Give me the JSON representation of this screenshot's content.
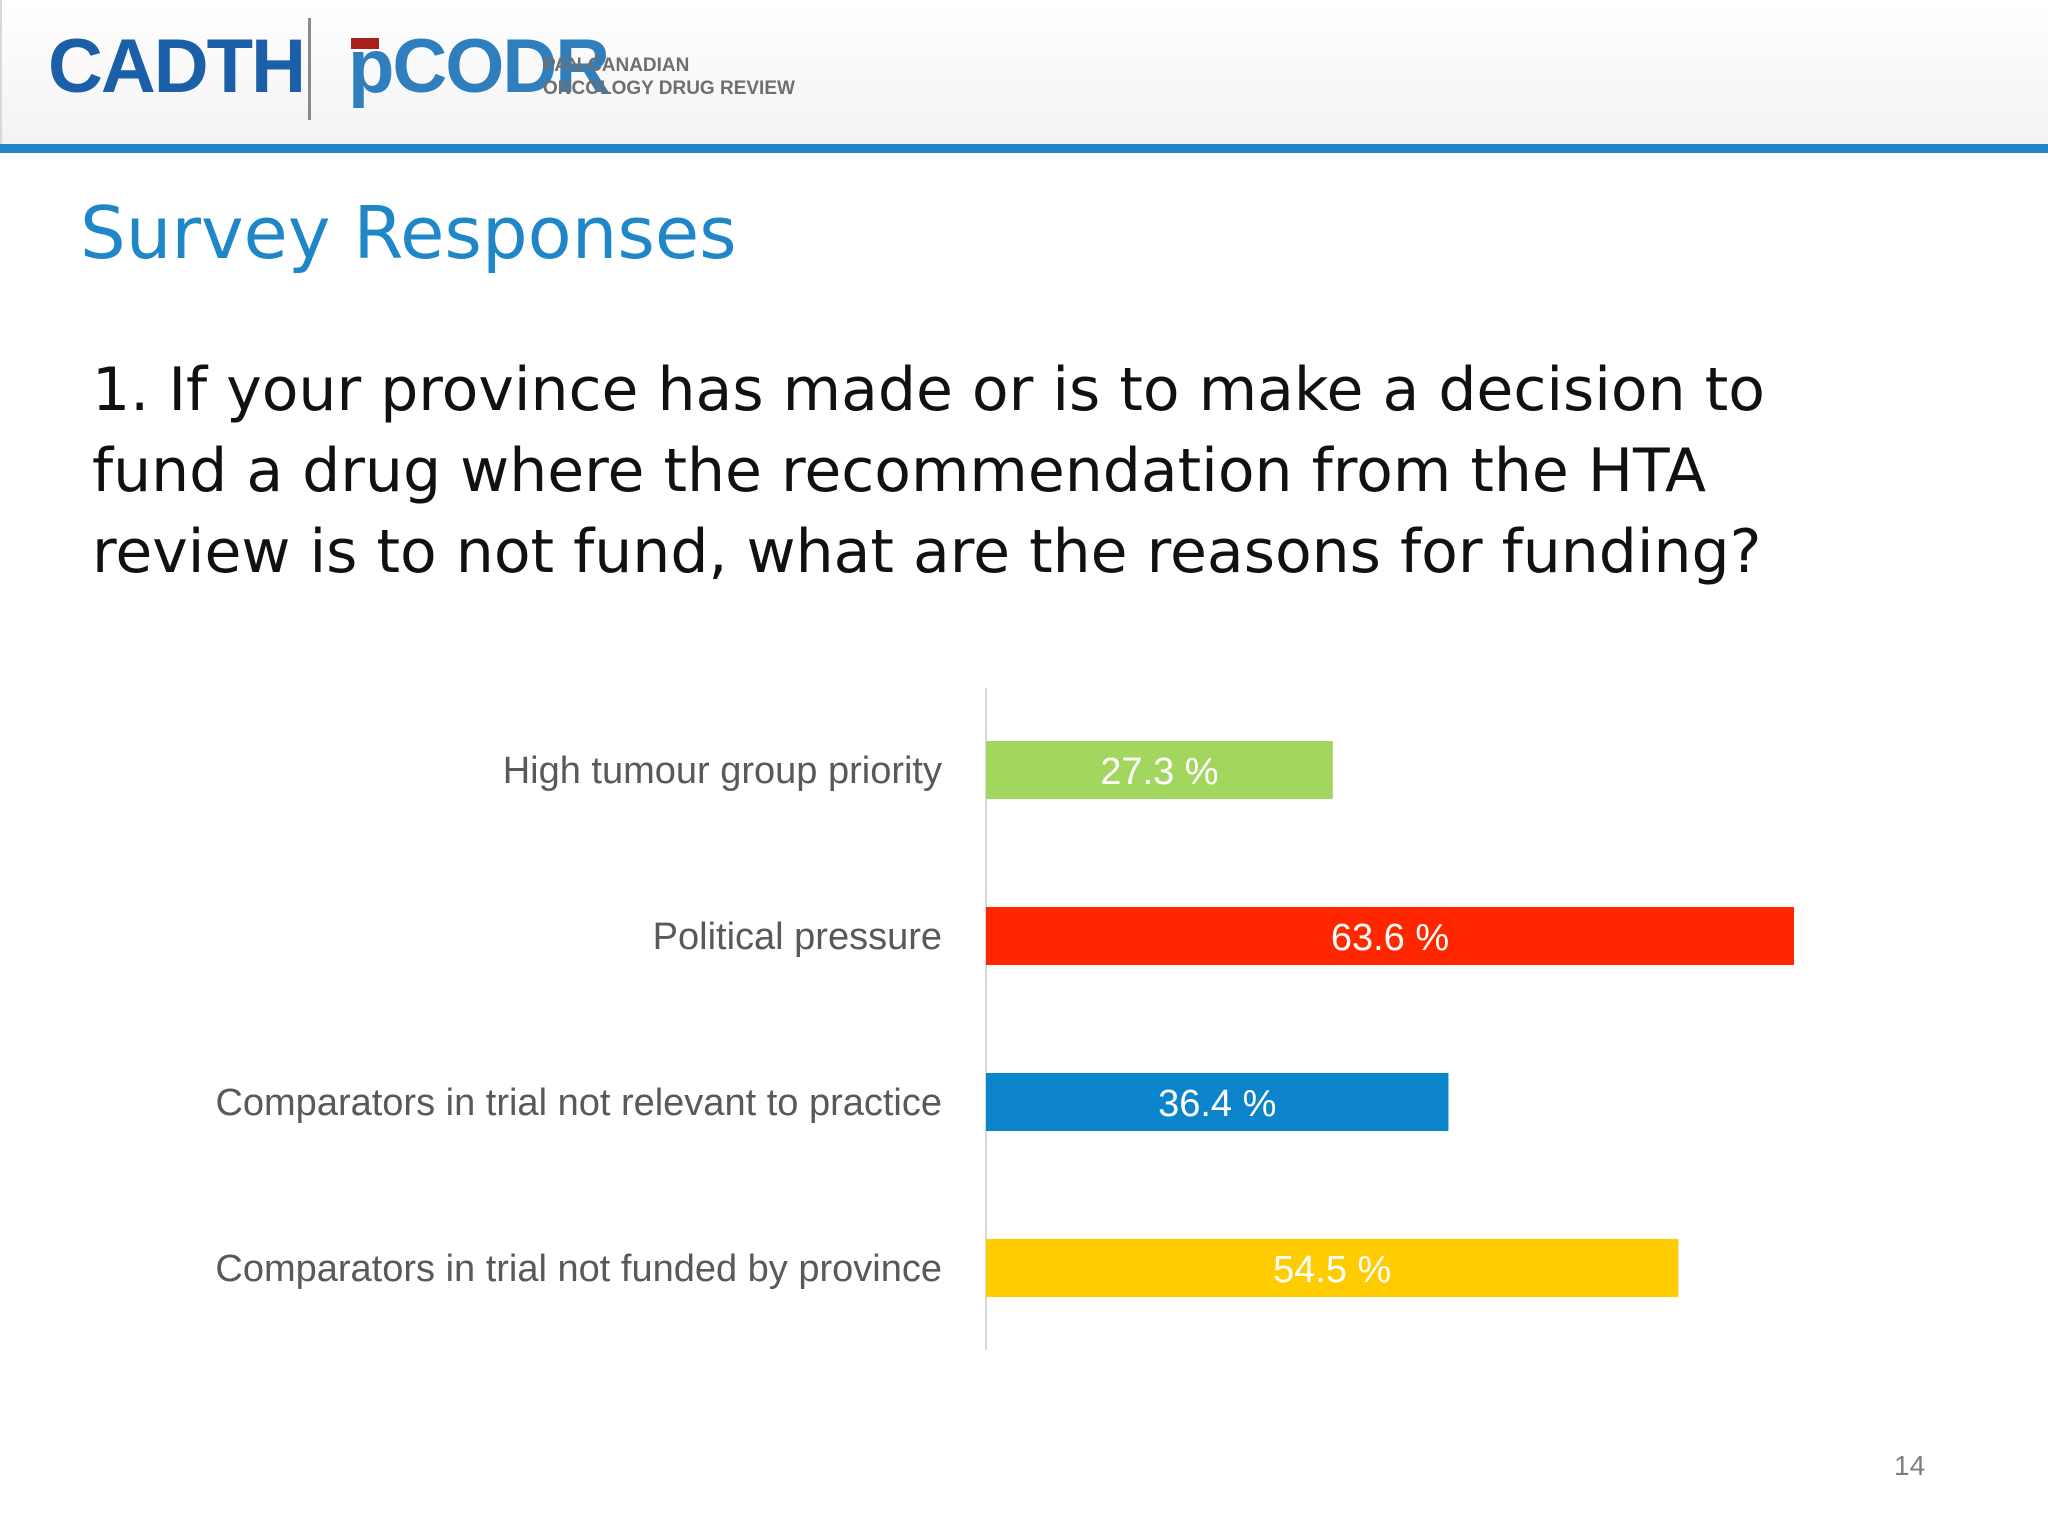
{
  "header": {
    "logo_left": "CADTH",
    "logo_right": "pCODR",
    "tagline_line1": "PAN-CANADIAN",
    "tagline_line2": "ONCOLOGY DRUG REVIEW"
  },
  "slide": {
    "title": "Survey Responses",
    "question": "1. If your province has made or is to make a decision to\nfund a drug where the recommendation from the HTA\nreview is to not fund, what are the reasons for funding?",
    "page_number": "14"
  },
  "chart_data": {
    "type": "bar",
    "orientation": "horizontal",
    "categories": [
      "High tumour group priority",
      "Political pressure",
      "Comparators in trial not relevant to practice",
      "Comparators in trial not funded by province"
    ],
    "values": [
      27.3,
      63.6,
      36.4,
      54.5
    ],
    "value_labels": [
      "27.3 %",
      "63.6 %",
      "36.4 %",
      "54.5 %"
    ],
    "unit": "%",
    "colors": [
      "#a3d65f",
      "#ff2600",
      "#0b84cc",
      "#ffcc00"
    ],
    "xlim": [
      0,
      72
    ],
    "grid": false,
    "legend": "none"
  }
}
